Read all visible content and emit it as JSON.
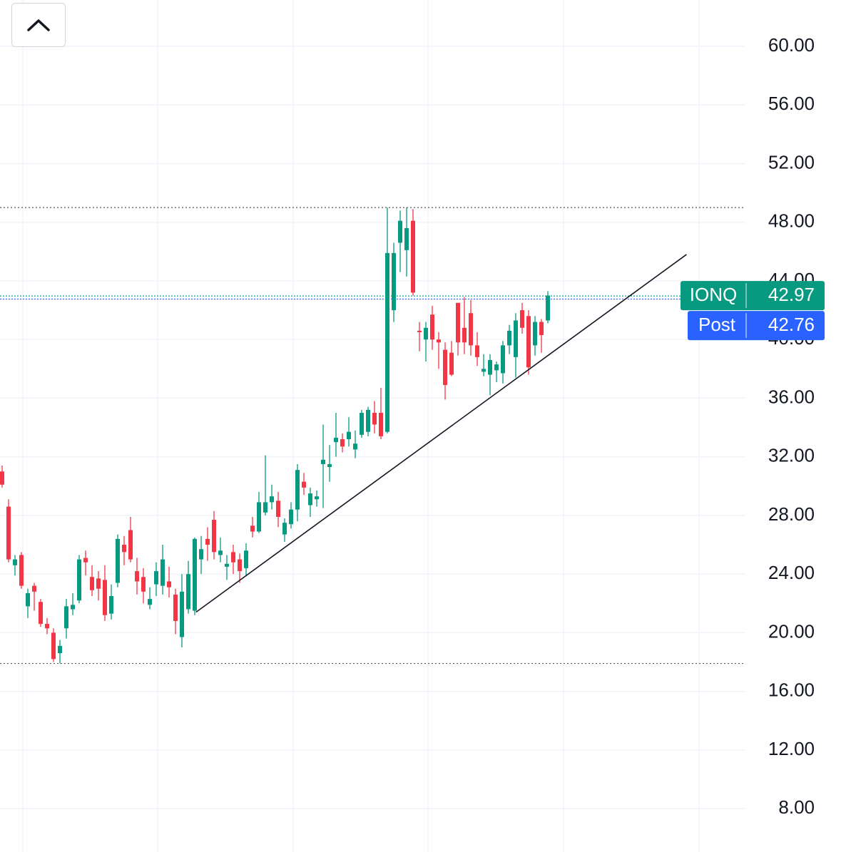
{
  "chart_data": {
    "type": "candlestick",
    "open": [
      31.0,
      28.6,
      24.6,
      25.3,
      21.8,
      23.2,
      22.1,
      20.6,
      20.0,
      18.6,
      20.3,
      21.6,
      22.2,
      25.1,
      23.8,
      23.7,
      23.6,
      21.3,
      23.4,
      26.0,
      27.0,
      24.2,
      23.8,
      21.9,
      23.3,
      23.2,
      23.5,
      22.6,
      19.7,
      21.6,
      21.5,
      25.0,
      26.4,
      27.7,
      25.3,
      24.5,
      25.5,
      25.0,
      24.4,
      27.3,
      26.9,
      28.2,
      28.9,
      29.0,
      26.7,
      27.4,
      28.4,
      30.3,
      28.7,
      29.1,
      31.5,
      31.3,
      33.0,
      33.2,
      33.2,
      32.5,
      33.5,
      33.7,
      35.0,
      35.0,
      33.7,
      42.0,
      46.6,
      46.1,
      48.1,
      40.6,
      40.0,
      41.7,
      40.0,
      39.3,
      39.1,
      42.5,
      40.8,
      41.8,
      39.6,
      37.8,
      37.6,
      37.9,
      37.7,
      39.6,
      38.8,
      42.0,
      41.6,
      39.6,
      41.2,
      41.3
    ],
    "high": [
      31.4,
      29.1,
      25.3,
      25.5,
      23.0,
      23.4,
      22.3,
      21.0,
      20.3,
      19.5,
      22.3,
      22.7,
      25.3,
      25.6,
      24.6,
      24.2,
      24.6,
      23.3,
      26.7,
      26.6,
      27.9,
      25.1,
      24.4,
      23.1,
      24.8,
      26.0,
      24.5,
      23.0,
      24.0,
      24.9,
      26.5,
      26.6,
      27.2,
      28.3,
      26.5,
      25.3,
      26.0,
      25.4,
      26.1,
      27.9,
      29.6,
      32.1,
      30.1,
      29.6,
      27.8,
      28.9,
      31.5,
      30.9,
      29.9,
      29.7,
      34.2,
      32.8,
      35.0,
      33.6,
      34.7,
      33.8,
      35.2,
      35.4,
      35.8,
      36.7,
      49.0,
      46.6,
      48.8,
      49.0,
      48.9,
      41.2,
      41.2,
      42.3,
      40.5,
      39.8,
      39.9,
      42.5,
      42.9,
      42.7,
      40.5,
      39.0,
      39.0,
      38.5,
      39.9,
      41.0,
      41.8,
      42.5,
      42.0,
      41.6,
      41.4,
      43.3
    ],
    "low": [
      29.9,
      24.8,
      23.9,
      23.0,
      21.0,
      21.5,
      20.4,
      19.9,
      18.0,
      17.9,
      19.6,
      21.2,
      22.0,
      23.9,
      22.5,
      22.2,
      20.8,
      20.9,
      23.1,
      24.6,
      24.8,
      22.6,
      22.0,
      21.6,
      22.5,
      22.6,
      22.4,
      19.9,
      19.0,
      21.3,
      21.2,
      24.0,
      24.9,
      25.0,
      24.8,
      23.6,
      24.0,
      23.4,
      23.9,
      26.5,
      26.8,
      28.0,
      28.4,
      27.2,
      26.2,
      27.1,
      27.6,
      29.4,
      27.9,
      28.6,
      28.5,
      30.3,
      32.0,
      32.3,
      32.7,
      31.9,
      33.3,
      33.4,
      33.6,
      33.2,
      33.6,
      41.2,
      44.6,
      44.3,
      43.0,
      39.2,
      38.5,
      39.3,
      38.0,
      35.9,
      37.5,
      38.9,
      39.0,
      38.9,
      38.2,
      37.5,
      36.2,
      37.1,
      37.0,
      39.0,
      37.4,
      40.4,
      37.6,
      38.9,
      39.1,
      41.1
    ],
    "close": [
      30.1,
      25.0,
      25.0,
      23.2,
      22.7,
      22.8,
      20.6,
      20.3,
      18.2,
      19.1,
      21.8,
      21.9,
      25.0,
      24.8,
      22.9,
      23.0,
      21.2,
      22.5,
      26.4,
      25.5,
      25.0,
      23.5,
      22.8,
      22.3,
      24.2,
      25.0,
      23.1,
      20.8,
      22.8,
      24.0,
      26.4,
      25.7,
      26.0,
      25.5,
      25.6,
      24.7,
      24.8,
      24.2,
      25.6,
      26.9,
      28.9,
      28.9,
      29.3,
      27.9,
      27.5,
      28.4,
      31.1,
      29.9,
      29.5,
      29.3,
      31.8,
      31.5,
      33.3,
      32.7,
      33.7,
      32.9,
      35.0,
      35.2,
      34.2,
      33.4,
      45.9,
      45.9,
      48.1,
      47.6,
      43.2,
      40.5,
      40.8,
      40.0,
      39.8,
      36.9,
      37.6,
      39.8,
      39.8,
      39.6,
      38.8,
      38.0,
      38.6,
      38.3,
      39.6,
      40.6,
      41.3,
      40.8,
      38.1,
      41.2,
      40.3,
      43.0
    ],
    "up_color": "#089981",
    "down_color": "#f23645",
    "ylim": [
      5.04,
      63.16
    ],
    "yticks": [
      {
        "value": 8,
        "label": "8.00"
      },
      {
        "value": 12,
        "label": "12.00"
      },
      {
        "value": 16,
        "label": "16.00"
      },
      {
        "value": 20,
        "label": "20.00"
      },
      {
        "value": 24,
        "label": "24.00"
      },
      {
        "value": 28,
        "label": "28.00"
      },
      {
        "value": 32,
        "label": "32.00"
      },
      {
        "value": 36,
        "label": "36.00"
      },
      {
        "value": 40,
        "label": "40.00"
      },
      {
        "value": 44,
        "label": "44.00"
      },
      {
        "value": 48,
        "label": "48.00"
      },
      {
        "value": 52,
        "label": "52.00"
      },
      {
        "value": 56,
        "label": "56.00"
      },
      {
        "value": 60,
        "label": "60.00"
      }
    ],
    "grid": true,
    "levels": [
      49.0,
      17.9
    ],
    "trendline": {
      "x": [
        30.2,
        106.6
      ],
      "y": [
        21.4,
        45.8
      ]
    },
    "price_labels": [
      {
        "name": "IONQ",
        "value": 42.97,
        "color": "#089981"
      },
      {
        "name": "Post",
        "value": 42.76,
        "color": "#2962ff"
      }
    ]
  }
}
